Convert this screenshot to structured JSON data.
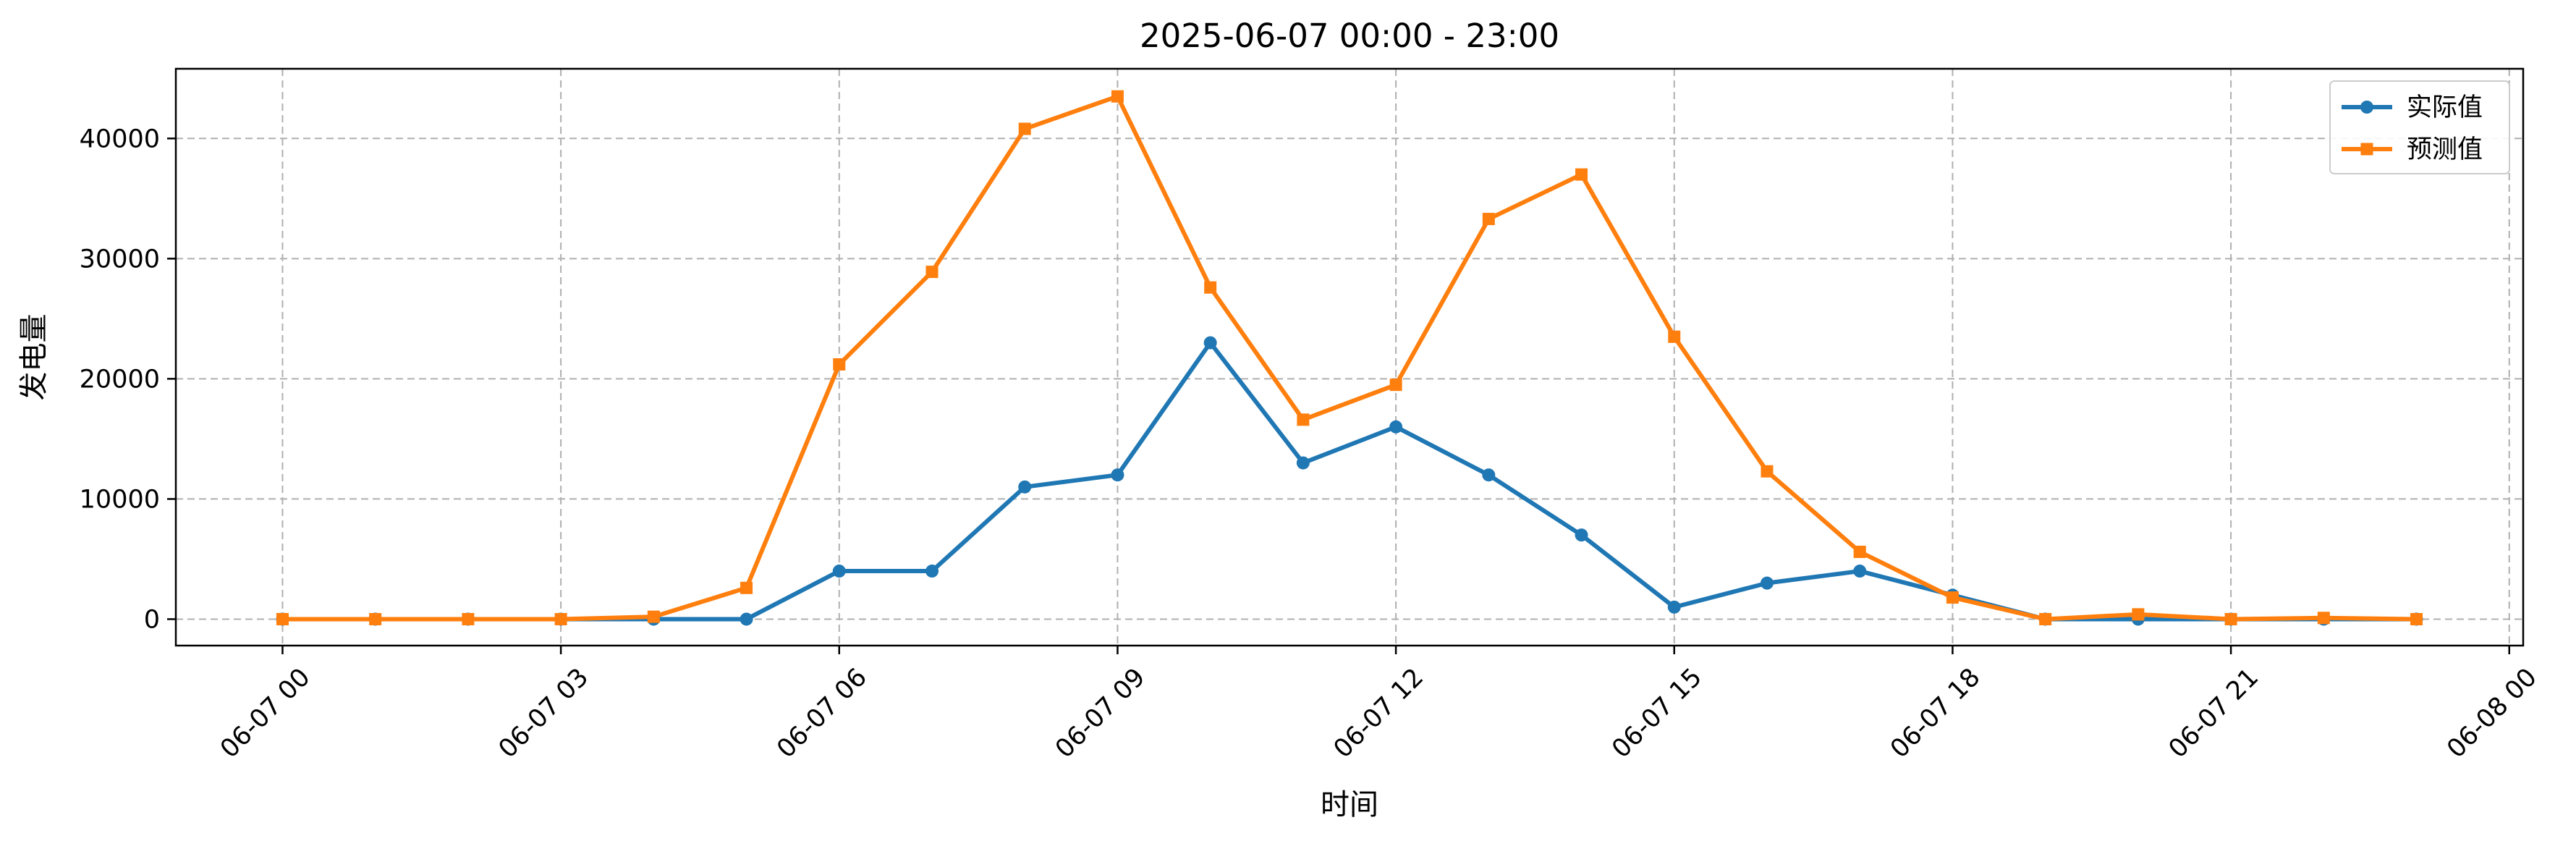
{
  "chart_data": {
    "type": "line",
    "title": "2025-06-07 00:00 - 23:00",
    "xlabel": "时间",
    "ylabel": "发电量",
    "x": [
      "00:00",
      "01:00",
      "02:00",
      "03:00",
      "04:00",
      "05:00",
      "06:00",
      "07:00",
      "08:00",
      "09:00",
      "10:00",
      "11:00",
      "12:00",
      "13:00",
      "14:00",
      "15:00",
      "16:00",
      "17:00",
      "18:00",
      "19:00",
      "20:00",
      "21:00",
      "22:00",
      "23:00"
    ],
    "x_hours": [
      0,
      1,
      2,
      3,
      4,
      5,
      6,
      7,
      8,
      9,
      10,
      11,
      12,
      13,
      14,
      15,
      16,
      17,
      18,
      19,
      20,
      21,
      22,
      23
    ],
    "xlim_hours": [
      -1.15,
      24.15
    ],
    "ylim": [
      -2200,
      45800
    ],
    "x_ticks": [
      {
        "hour": 0,
        "label": "06-07 00"
      },
      {
        "hour": 3,
        "label": "06-07 03"
      },
      {
        "hour": 6,
        "label": "06-07 06"
      },
      {
        "hour": 9,
        "label": "06-07 09"
      },
      {
        "hour": 12,
        "label": "06-07 12"
      },
      {
        "hour": 15,
        "label": "06-07 15"
      },
      {
        "hour": 18,
        "label": "06-07 18"
      },
      {
        "hour": 21,
        "label": "06-07 21"
      },
      {
        "hour": 24,
        "label": "06-08 00"
      }
    ],
    "y_ticks": [
      {
        "value": 0,
        "label": "0"
      },
      {
        "value": 10000,
        "label": "10000"
      },
      {
        "value": 20000,
        "label": "20000"
      },
      {
        "value": 30000,
        "label": "30000"
      },
      {
        "value": 40000,
        "label": "40000"
      }
    ],
    "grid": true,
    "legend_position": "top-right",
    "series": [
      {
        "name": "实际值",
        "color": "#1f77b4",
        "marker": "circle",
        "values": [
          0,
          0,
          0,
          0,
          0,
          0,
          4000,
          4000,
          11000,
          12000,
          23000,
          13000,
          16000,
          12000,
          7000,
          1000,
          3000,
          4000,
          2000,
          0,
          0,
          0,
          0,
          0
        ]
      },
      {
        "name": "预测值",
        "color": "#ff7f0e",
        "marker": "square",
        "values": [
          0,
          0,
          0,
          0,
          200,
          2600,
          21200,
          28900,
          40800,
          43500,
          27600,
          16600,
          19500,
          33300,
          37000,
          23500,
          12300,
          5600,
          1800,
          0,
          400,
          0,
          100,
          0
        ]
      }
    ]
  }
}
